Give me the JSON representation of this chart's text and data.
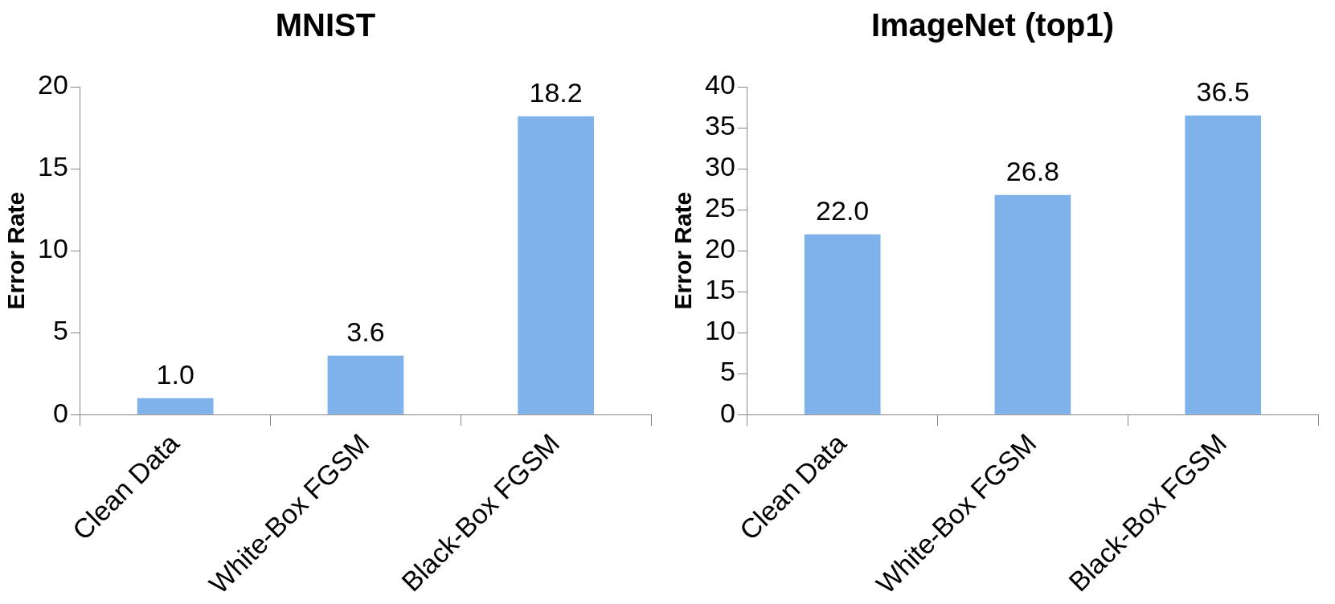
{
  "chart_data": [
    {
      "type": "bar",
      "title": "MNIST",
      "ylabel": "Error Rate",
      "categories": [
        "Clean Data",
        "White-Box FGSM",
        "Black-Box FGSM"
      ],
      "values": [
        1.0,
        3.6,
        18.2
      ],
      "value_labels": [
        "1.0",
        "3.6",
        "18.2"
      ],
      "color": "#7fb2ea",
      "ylim": [
        0,
        20
      ],
      "yticks": [
        0,
        5,
        10,
        15,
        20
      ]
    },
    {
      "type": "bar",
      "title": "ImageNet (top1)",
      "ylabel": "Error Rate",
      "categories": [
        "Clean Data",
        "White-Box FGSM",
        "Black-Box FGSM"
      ],
      "values": [
        22.0,
        26.8,
        36.5
      ],
      "value_labels": [
        "22.0",
        "26.8",
        "36.5"
      ],
      "color": "#7fb2ea",
      "ylim": [
        0,
        40
      ],
      "yticks": [
        0,
        5,
        10,
        15,
        20,
        25,
        30,
        35,
        40
      ]
    }
  ]
}
